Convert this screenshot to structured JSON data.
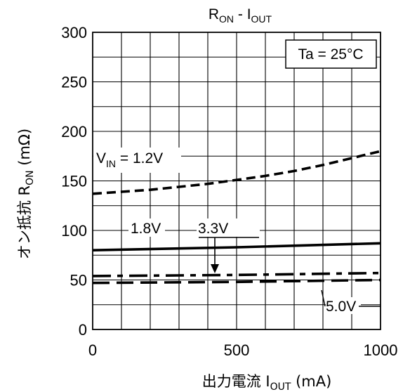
{
  "chart_data": {
    "type": "line",
    "title": {
      "main": "R",
      "main_sub": "ON",
      "sep": " - I",
      "sep_sub": "OUT"
    },
    "xlabel": {
      "main": "出力電流  I",
      "sub": "OUT",
      "unit": "   (mA)"
    },
    "ylabel": {
      "main": "オン抵抗  R",
      "sub": "ON",
      "unit": "   (mΩ)"
    },
    "xlim": [
      0,
      1000
    ],
    "ylim": [
      0,
      300
    ],
    "xticks": [
      "0",
      "500",
      "1000"
    ],
    "yticks": [
      "0",
      "50",
      "100",
      "150",
      "200",
      "250",
      "300"
    ],
    "grid": true,
    "annotation_box": "Ta = 25°C",
    "series": [
      {
        "name": "1.2V",
        "style": "short-dash",
        "x": [
          0,
          100,
          200,
          300,
          400,
          500,
          600,
          700,
          800,
          900,
          1000
        ],
        "y": [
          137,
          139,
          141,
          144,
          147,
          151,
          155,
          160,
          166,
          173,
          180
        ]
      },
      {
        "name": "1.8V",
        "style": "solid",
        "x": [
          0,
          500,
          1000
        ],
        "y": [
          80,
          83,
          87
        ]
      },
      {
        "name": "3.3V",
        "style": "dash-dot",
        "x": [
          0,
          500,
          1000
        ],
        "y": [
          54,
          55,
          57
        ]
      },
      {
        "name": "5.0V",
        "style": "long-dash",
        "x": [
          0,
          500,
          1000
        ],
        "y": [
          47,
          48,
          50
        ]
      }
    ],
    "labels": {
      "vin": {
        "main": "V",
        "sub": "IN",
        "rest": " = 1.2V"
      },
      "s18": "1.8V",
      "s33": "3.3V",
      "s50": "5.0V"
    }
  }
}
